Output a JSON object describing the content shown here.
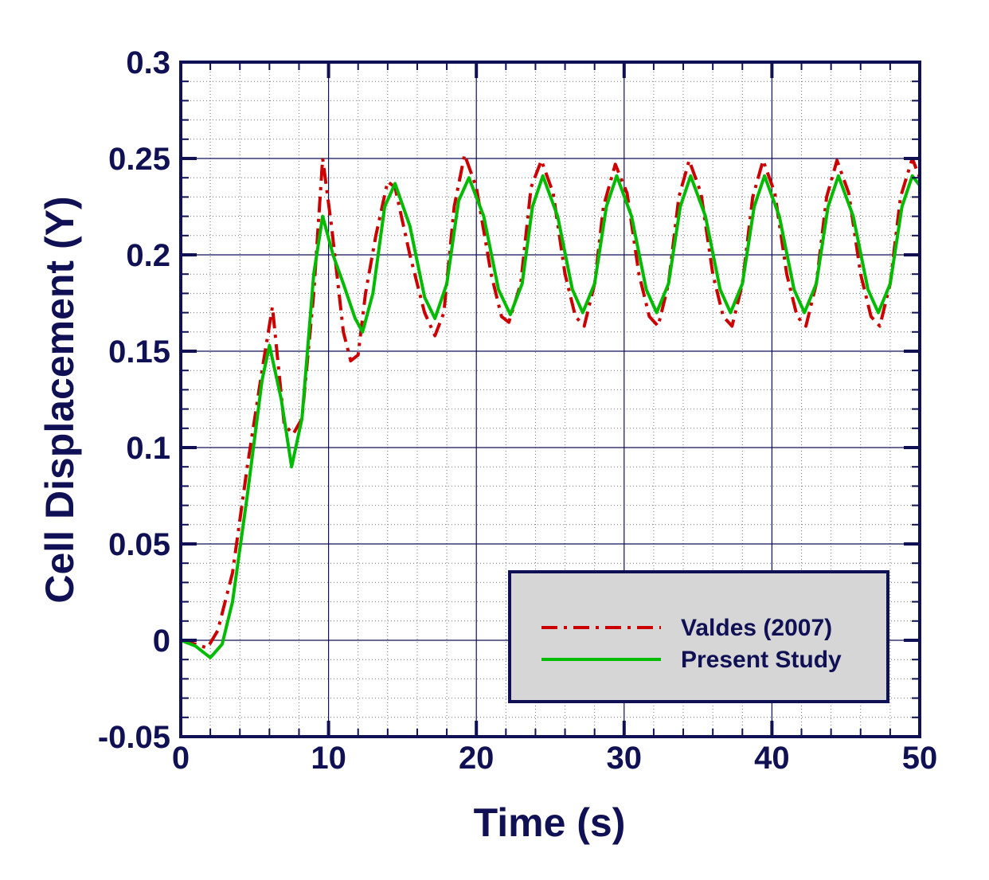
{
  "chart_data": {
    "type": "line",
    "xlabel": "Time (s)",
    "ylabel": "Cell Displacement (Y)",
    "xlim": [
      0,
      50
    ],
    "ylim": [
      -0.05,
      0.3
    ],
    "xticks": [
      0,
      10,
      20,
      30,
      40,
      50
    ],
    "yticks": [
      -0.05,
      0,
      0.05,
      0.1,
      0.15,
      0.2,
      0.25,
      0.3
    ],
    "xtick_labels": [
      "0",
      "10",
      "20",
      "30",
      "40",
      "50"
    ],
    "ytick_labels": [
      "-0.05",
      "0",
      "0.05",
      "0.1",
      "0.15",
      "0.2",
      "0.25",
      "0.3"
    ],
    "grid": true,
    "legend_position": "lower-right",
    "series": [
      {
        "name": "Valdes (2007)",
        "color": "#cc0000",
        "style": "dash-dot",
        "points": [
          [
            0,
            0
          ],
          [
            1,
            -0.002
          ],
          [
            1.8,
            -0.004
          ],
          [
            2.5,
            0.005
          ],
          [
            3.5,
            0.035
          ],
          [
            4.5,
            0.09
          ],
          [
            5.5,
            0.14
          ],
          [
            6.2,
            0.173
          ],
          [
            7,
            0.112
          ],
          [
            7.6,
            0.107
          ],
          [
            8.2,
            0.115
          ],
          [
            9,
            0.18
          ],
          [
            9.6,
            0.25
          ],
          [
            10.2,
            0.215
          ],
          [
            11,
            0.16
          ],
          [
            11.5,
            0.145
          ],
          [
            12,
            0.148
          ],
          [
            12.5,
            0.18
          ],
          [
            13.2,
            0.21
          ],
          [
            14,
            0.238
          ],
          [
            14.5,
            0.235
          ],
          [
            15.5,
            0.2
          ],
          [
            16.5,
            0.17
          ],
          [
            17.2,
            0.158
          ],
          [
            17.8,
            0.17
          ],
          [
            18.5,
            0.225
          ],
          [
            19.2,
            0.252
          ],
          [
            20,
            0.235
          ],
          [
            21,
            0.19
          ],
          [
            21.7,
            0.168
          ],
          [
            22.2,
            0.165
          ],
          [
            23,
            0.185
          ],
          [
            23.7,
            0.235
          ],
          [
            24.4,
            0.249
          ],
          [
            25.2,
            0.232
          ],
          [
            26,
            0.19
          ],
          [
            26.7,
            0.168
          ],
          [
            27.3,
            0.163
          ],
          [
            28,
            0.185
          ],
          [
            28.6,
            0.225
          ],
          [
            29.4,
            0.247
          ],
          [
            30.2,
            0.232
          ],
          [
            31,
            0.19
          ],
          [
            31.7,
            0.168
          ],
          [
            32.3,
            0.163
          ],
          [
            33,
            0.185
          ],
          [
            33.7,
            0.23
          ],
          [
            34.4,
            0.249
          ],
          [
            35.2,
            0.232
          ],
          [
            36,
            0.19
          ],
          [
            36.7,
            0.168
          ],
          [
            37.3,
            0.163
          ],
          [
            38,
            0.185
          ],
          [
            38.7,
            0.23
          ],
          [
            39.4,
            0.249
          ],
          [
            40.2,
            0.232
          ],
          [
            41,
            0.19
          ],
          [
            41.7,
            0.168
          ],
          [
            42.3,
            0.163
          ],
          [
            43,
            0.185
          ],
          [
            43.7,
            0.23
          ],
          [
            44.4,
            0.249
          ],
          [
            45.2,
            0.232
          ],
          [
            46,
            0.19
          ],
          [
            46.7,
            0.168
          ],
          [
            47.3,
            0.163
          ],
          [
            48,
            0.185
          ],
          [
            48.7,
            0.23
          ],
          [
            49.5,
            0.25
          ],
          [
            50,
            0.24
          ]
        ]
      },
      {
        "name": "Present Study",
        "color": "#00bb00",
        "style": "solid",
        "points": [
          [
            0,
            0
          ],
          [
            1,
            -0.003
          ],
          [
            2,
            -0.009
          ],
          [
            2.8,
            -0.002
          ],
          [
            3.5,
            0.02
          ],
          [
            4.5,
            0.075
          ],
          [
            5.5,
            0.135
          ],
          [
            6,
            0.153
          ],
          [
            6.8,
            0.125
          ],
          [
            7.5,
            0.09
          ],
          [
            8.2,
            0.115
          ],
          [
            9,
            0.19
          ],
          [
            9.6,
            0.22
          ],
          [
            10.3,
            0.2
          ],
          [
            11,
            0.185
          ],
          [
            11.8,
            0.167
          ],
          [
            12.3,
            0.16
          ],
          [
            13,
            0.18
          ],
          [
            13.8,
            0.225
          ],
          [
            14.5,
            0.237
          ],
          [
            15.5,
            0.215
          ],
          [
            16.5,
            0.178
          ],
          [
            17.2,
            0.167
          ],
          [
            18,
            0.185
          ],
          [
            18.8,
            0.228
          ],
          [
            19.5,
            0.24
          ],
          [
            20.5,
            0.22
          ],
          [
            21.5,
            0.182
          ],
          [
            22.3,
            0.169
          ],
          [
            23.1,
            0.185
          ],
          [
            23.8,
            0.225
          ],
          [
            24.5,
            0.241
          ],
          [
            25.5,
            0.22
          ],
          [
            26.5,
            0.182
          ],
          [
            27.2,
            0.17
          ],
          [
            28,
            0.185
          ],
          [
            28.8,
            0.225
          ],
          [
            29.5,
            0.241
          ],
          [
            30.5,
            0.22
          ],
          [
            31.5,
            0.182
          ],
          [
            32.2,
            0.17
          ],
          [
            33,
            0.185
          ],
          [
            33.8,
            0.225
          ],
          [
            34.5,
            0.241
          ],
          [
            35.5,
            0.22
          ],
          [
            36.5,
            0.182
          ],
          [
            37.2,
            0.17
          ],
          [
            38,
            0.185
          ],
          [
            38.8,
            0.225
          ],
          [
            39.5,
            0.241
          ],
          [
            40.5,
            0.22
          ],
          [
            41.5,
            0.182
          ],
          [
            42.2,
            0.17
          ],
          [
            43,
            0.185
          ],
          [
            43.8,
            0.225
          ],
          [
            44.5,
            0.241
          ],
          [
            45.5,
            0.22
          ],
          [
            46.5,
            0.182
          ],
          [
            47.2,
            0.17
          ],
          [
            48,
            0.185
          ],
          [
            48.8,
            0.225
          ],
          [
            49.5,
            0.241
          ],
          [
            50,
            0.236
          ]
        ]
      }
    ]
  },
  "colors": {
    "axis": "#101055",
    "major_grid": "#101055",
    "minor_grid": "#777777",
    "legend_background": "#d6d6d6"
  }
}
